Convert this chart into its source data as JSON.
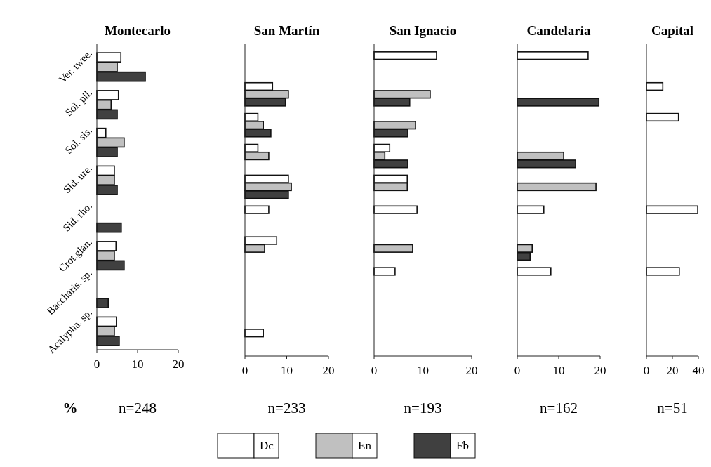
{
  "chart_data": [
    {
      "type": "bar",
      "orientation": "horizontal",
      "title": "Montecarlo",
      "categories": [
        "Ver. twee.",
        "Sol. pil.",
        "Sol. sis.",
        "Sid. ure.",
        "Sid. rho.",
        "Crot.glan.",
        "Baccharis. sp.",
        "Acalypha. sp."
      ],
      "series": [
        {
          "color": "#ffffff",
          "values": [
            5.9,
            5.3,
            2.2,
            4.3,
            null,
            4.7,
            null,
            4.8
          ]
        },
        {
          "color": "#c0c0c0",
          "values": [
            5.0,
            3.5,
            6.7,
            4.3,
            null,
            4.3,
            null,
            4.3
          ]
        },
        {
          "color": "#404040",
          "values": [
            11.9,
            5.0,
            5.0,
            5.0,
            6.0,
            6.7,
            2.8,
            5.5
          ]
        }
      ],
      "xlim": [
        0,
        20
      ],
      "xticks": [
        0,
        10,
        20
      ],
      "annotations": [
        "%",
        "n=248"
      ]
    },
    {
      "type": "bar",
      "orientation": "horizontal",
      "title": "San Martín",
      "categories": [
        null,
        null,
        null,
        null,
        null,
        null,
        null,
        null,
        null,
        null
      ],
      "tick_labels": "x",
      "series": [
        {
          "color": "#ffffff",
          "values": [
            null,
            6.6,
            3.1,
            3.1,
            10.4,
            5.7,
            7.6,
            null,
            null,
            4.4
          ]
        },
        {
          "color": "#c0c0c0",
          "values": [
            null,
            10.4,
            4.4,
            5.7,
            11.1,
            null,
            4.7,
            null,
            null,
            null
          ]
        },
        {
          "color": "#404040",
          "values": [
            null,
            9.7,
            6.2,
            null,
            10.4,
            null,
            null,
            null,
            null,
            null
          ]
        }
      ],
      "xlim": [
        0,
        20
      ],
      "xticks": [
        0,
        10,
        20
      ],
      "annotations": [
        "n=233"
      ]
    },
    {
      "type": "bar",
      "orientation": "horizontal",
      "title": "San Ignacio",
      "categories": [
        null,
        null,
        null,
        null,
        null,
        null,
        null,
        null,
        null,
        null
      ],
      "tick_labels": "x",
      "legend": "bottom",
      "series": [
        {
          "name": "Dc",
          "color": "#ffffff",
          "values": [
            12.8,
            null,
            null,
            3.2,
            6.8,
            8.8,
            null,
            4.3,
            null,
            null
          ]
        },
        {
          "name": "En",
          "color": "#c0c0c0",
          "values": [
            null,
            11.5,
            8.5,
            2.2,
            6.8,
            null,
            7.9,
            null,
            null,
            null
          ]
        },
        {
          "name": "Fb",
          "color": "#404040",
          "values": [
            null,
            7.3,
            6.9,
            6.9,
            null,
            null,
            null,
            null,
            null,
            null
          ]
        }
      ],
      "xlim": [
        0,
        20
      ],
      "xticks": [
        0,
        10,
        20
      ],
      "annotations": [
        "n=193"
      ]
    },
    {
      "type": "bar",
      "orientation": "horizontal",
      "title": "Candelaria",
      "categories": [
        null,
        null,
        null,
        null,
        null,
        null,
        null,
        null,
        null,
        null
      ],
      "tick_labels": "x",
      "series": [
        {
          "color": "#ffffff",
          "values": [
            17.1,
            null,
            null,
            null,
            null,
            6.4,
            null,
            8.1,
            null,
            null
          ]
        },
        {
          "color": "#c0c0c0",
          "values": [
            null,
            null,
            null,
            11.2,
            19.0,
            null,
            3.6,
            null,
            null,
            null
          ]
        },
        {
          "color": "#404040",
          "values": [
            null,
            19.7,
            null,
            14.1,
            null,
            null,
            3.1,
            null,
            null,
            null
          ]
        }
      ],
      "xlim": [
        0,
        20
      ],
      "xticks": [
        0,
        10,
        20
      ],
      "annotations": [
        "n=162"
      ]
    },
    {
      "type": "bar",
      "orientation": "horizontal",
      "title": "Capital",
      "categories": [
        null,
        null,
        null,
        null,
        null,
        null,
        null,
        null,
        null,
        null
      ],
      "tick_labels": "x",
      "series": [
        {
          "color": "#ffffff",
          "values": [
            null,
            12.6,
            24.7,
            null,
            null,
            39.5,
            null,
            25.3,
            null,
            null
          ]
        }
      ],
      "xlim": [
        0,
        40
      ],
      "xticks": [
        0,
        20,
        40
      ],
      "annotations": [
        "n=51"
      ]
    }
  ]
}
